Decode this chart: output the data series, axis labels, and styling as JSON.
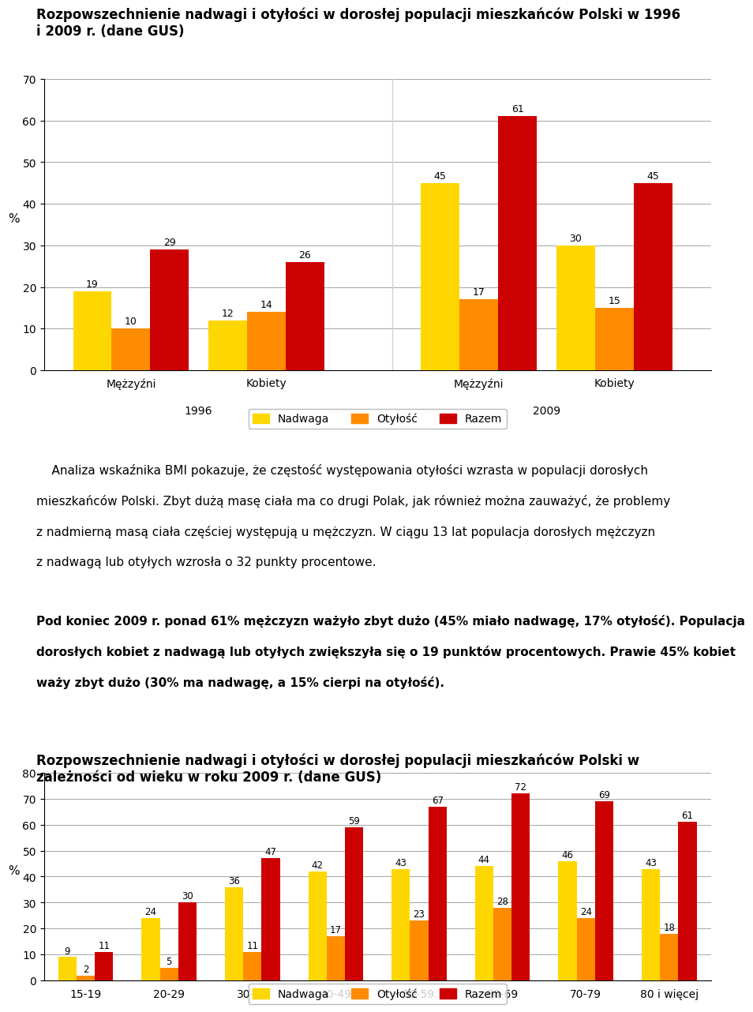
{
  "chart1": {
    "title": "Rozpowszechnienie nadwagi i otyłości w dorosłej populacji mieszkańców Polski w 1996\ni 2009 r. (dane GUS)",
    "groups": [
      "Mężzyźni",
      "Kobiety",
      "Mężzyźni",
      "Kobiety"
    ],
    "year_labels": [
      "1996",
      "2009"
    ],
    "nadwaga": [
      19,
      12,
      45,
      30
    ],
    "otylosc": [
      10,
      14,
      17,
      15
    ],
    "razem": [
      29,
      26,
      61,
      45
    ],
    "ylabel": "%",
    "ylim": [
      0,
      70
    ],
    "yticks": [
      0,
      10,
      20,
      30,
      40,
      50,
      60,
      70
    ],
    "color_nadwaga": "#FFD700",
    "color_otylosc": "#FF8C00",
    "color_razem": "#CC0000",
    "legend_labels": [
      "Nadwaga",
      "Otyłość",
      "Razem"
    ]
  },
  "chart2": {
    "title": "Rozpowszechnienie nadwagi i otyłości w dorosłej populacji mieszkańców Polski w\nzależności od wieku w roku 2009 r. (dane GUS)",
    "categories": [
      "15-19",
      "20-29",
      "30-39",
      "40-49",
      "50-59",
      "60-69",
      "70-79",
      "80 i więcej"
    ],
    "nadwaga": [
      9,
      24,
      36,
      42,
      43,
      44,
      46,
      43
    ],
    "otylosc": [
      2,
      5,
      11,
      17,
      23,
      28,
      24,
      18
    ],
    "razem": [
      11,
      30,
      47,
      59,
      67,
      72,
      69,
      61
    ],
    "ylabel": "%",
    "ylim": [
      0,
      80
    ],
    "yticks": [
      0,
      10,
      20,
      30,
      40,
      50,
      60,
      70,
      80
    ],
    "color_nadwaga": "#FFD700",
    "color_otylosc": "#FF8C00",
    "color_razem": "#CC0000",
    "legend_labels": [
      "Nadwaga",
      "Otyłość",
      "Razem"
    ]
  },
  "text_paragraph1_lines": [
    "    Analiza wskaźnika BMI pokazuje, że częstość występowania otyłości wzrasta w populacji dorosłych",
    "mieszkańców Polski. Zbyt dużą masę ciała ma co drugi Polak, jak również można zauważyć, że problemy",
    "z nadmierną masą ciała częściej występują u mężczyzn. W ciągu 13 lat populacja dorosłych mężczyzn",
    "z nadwagą lub otyłych wzrosła o 32 punkty procentowe."
  ],
  "text_paragraph2_lines": [
    "Pod koniec 2009 r. ponad 61% mężczyzn ważyło zbyt dużo (45% miało nadwagę, 17% otyłość). Populacja",
    "dorosłych kobiet z nadwagą lub otyłych zwiększyła się o 19 punktów procentowych. Prawie 45% kobiet",
    "waży zbyt dużo (30% ma nadwagę, a 15% cierpi na otyłość)."
  ],
  "background_color": "#FFFFFF",
  "fig_width": 9.6,
  "fig_height": 13.93
}
